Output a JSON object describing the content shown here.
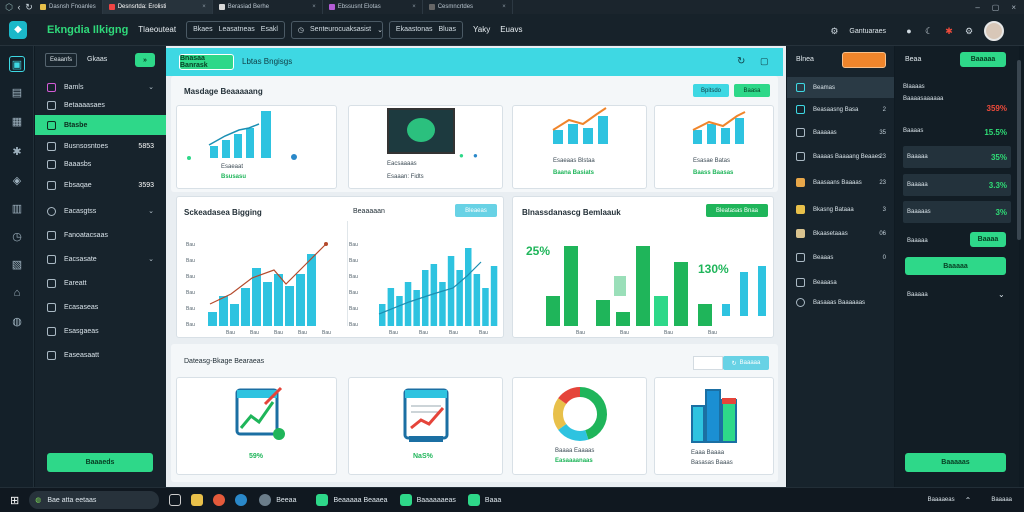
{
  "browser": {
    "tabs": [
      {
        "label": "Dasnsh Fnoanles"
      },
      {
        "label": "Desnsrtda: Erolisti"
      },
      {
        "label": "Berasiad Berhe"
      },
      {
        "label": "Ebssusnt Elotas"
      },
      {
        "label": "Cesmncrtdes"
      }
    ]
  },
  "topbar": {
    "brand": "Ekngdia Ilkigng",
    "nav_link": "Tlaeouteat",
    "nav_buttons": [
      "Bkaes",
      "Leasatneas",
      "Esakl"
    ],
    "dropdown_label": "Senteurocuaksasist",
    "nav_buttons2": [
      "Ekaastonas",
      "Bluas"
    ],
    "nav_tail": [
      "Yaky",
      "Euavs"
    ],
    "right_label": "Gantuaraes"
  },
  "sidebar": {
    "select_label": "Eeaanfs",
    "select_alt": "Gkaas",
    "items": [
      {
        "label": "Bamls"
      },
      {
        "label": "Betaaaasaes"
      },
      {
        "label": "Btasbe"
      },
      {
        "label": "Busnsosntoes",
        "value": "5853"
      },
      {
        "label": "Baaasbs"
      },
      {
        "label": "Ebsaqae",
        "value": "3593"
      },
      {
        "label": "Eacasgtss"
      },
      {
        "label": "Fanoatacsaas"
      },
      {
        "label": "Eacsasate"
      },
      {
        "label": "Eareatt"
      },
      {
        "label": "Ecasaseas"
      },
      {
        "label": "Esasgaeas"
      },
      {
        "label": "Easeasaatt"
      }
    ],
    "bottom_button": "Baaaeds"
  },
  "main": {
    "header_button": "Bnasaa Banrask",
    "header_title": "Lbtas Bngisgs",
    "section1_title": "Masdage Beaaaaang",
    "section1_buttons": [
      "Bpitsdo",
      "Baasa"
    ],
    "kpis": [
      {
        "title": "Esaeaat",
        "value": "Bsusasu"
      },
      {
        "title": "Eacsaaaas",
        "value": "Esaaan: Fidts"
      },
      {
        "title": "Esaeaas Blstaa",
        "value": "Baana Basiats"
      },
      {
        "title": "Esasae Batas",
        "value": "Baass Baasas"
      }
    ],
    "chart1": {
      "title": "Sckeadasea Bigging",
      "y_ticks": [
        "Bau",
        "Bau",
        "Bau",
        "Bau",
        "Bau",
        "Bau"
      ],
      "x_ticks": [
        "Bau",
        "Bau",
        "Bau",
        "Bau",
        "Bau"
      ]
    },
    "chart2": {
      "title": "Beaaaaan",
      "button": "Bleaeas",
      "y_ticks": [
        "Bau",
        "Bau",
        "Bau",
        "Bau",
        "Bau",
        "Bau"
      ],
      "x_ticks": [
        "Bau",
        "Bau",
        "Bau",
        "Bau"
      ]
    },
    "chart3": {
      "title": "Blnassdanascg Bemlaauk",
      "button": "Bleatasas Bnaa",
      "stat_left": "25%",
      "stat_right": "130%",
      "x_ticks": [
        "Bau",
        "Bau",
        "Bau",
        "Bau"
      ]
    },
    "section2_title": "Dateasg-Bkage Bearaeas",
    "section2_button": "Baaaaa",
    "tiles": [
      {
        "value": "59%"
      },
      {
        "value": "NaS%"
      },
      {
        "title": "Baaaa Eaaaas",
        "value": "Easaaaanaas"
      },
      {
        "title": "Eaaa Baaaa",
        "value": "Basasas Baaas"
      }
    ]
  },
  "rpanel": {
    "title": "Blnea",
    "items": [
      {
        "label": "Beamas"
      },
      {
        "label": "Beasaasng Basa",
        "value": "2"
      },
      {
        "label": "Baaaaas",
        "value": "35"
      },
      {
        "label": "Baaaas Baaaang Beaaes",
        "value": "23"
      },
      {
        "label": "Baasaans Baaaas",
        "value": "23"
      },
      {
        "label": "Bkasng Bataaa",
        "value": "3"
      },
      {
        "label": "Bkaasetaaas",
        "value": "06"
      },
      {
        "label": "Beaaas",
        "value": "0"
      },
      {
        "label": "Beaaasa"
      },
      {
        "label": "Basaaas Baaaaaas"
      }
    ]
  },
  "fpanel": {
    "title": "Beaa",
    "top_button": "Baaaaa",
    "rows": [
      {
        "label": "Blaaaas",
        "value": ""
      },
      {
        "label": "Baaaasaaaaaa",
        "value": "359%"
      },
      {
        "label": "Baaaas",
        "value": "15.5%"
      },
      {
        "label": "Baaaaa",
        "value": "35%"
      },
      {
        "label": "Baaaaa",
        "value": "3.3%"
      },
      {
        "label": "Baaaaas",
        "value": "3%"
      }
    ],
    "row_button_label": "Baaaaa",
    "row_button": "Baaaa",
    "wide_button": "Baaaaa",
    "dropdown": "Baaaaa",
    "bottom_button": "Baaaaas"
  },
  "taskbar": {
    "search": "Bae atta eetaas",
    "items": [
      "Beeaa",
      "Beaaaaa Beaaea",
      "Baaaaaaeas",
      "Baaa"
    ],
    "tray": "Baaaaeas",
    "clock": "Baaaaa"
  },
  "colors": {
    "teal": "#3ed8e3",
    "green": "#2ed889",
    "dark": "#17232c",
    "red": "#ef4b3b"
  }
}
